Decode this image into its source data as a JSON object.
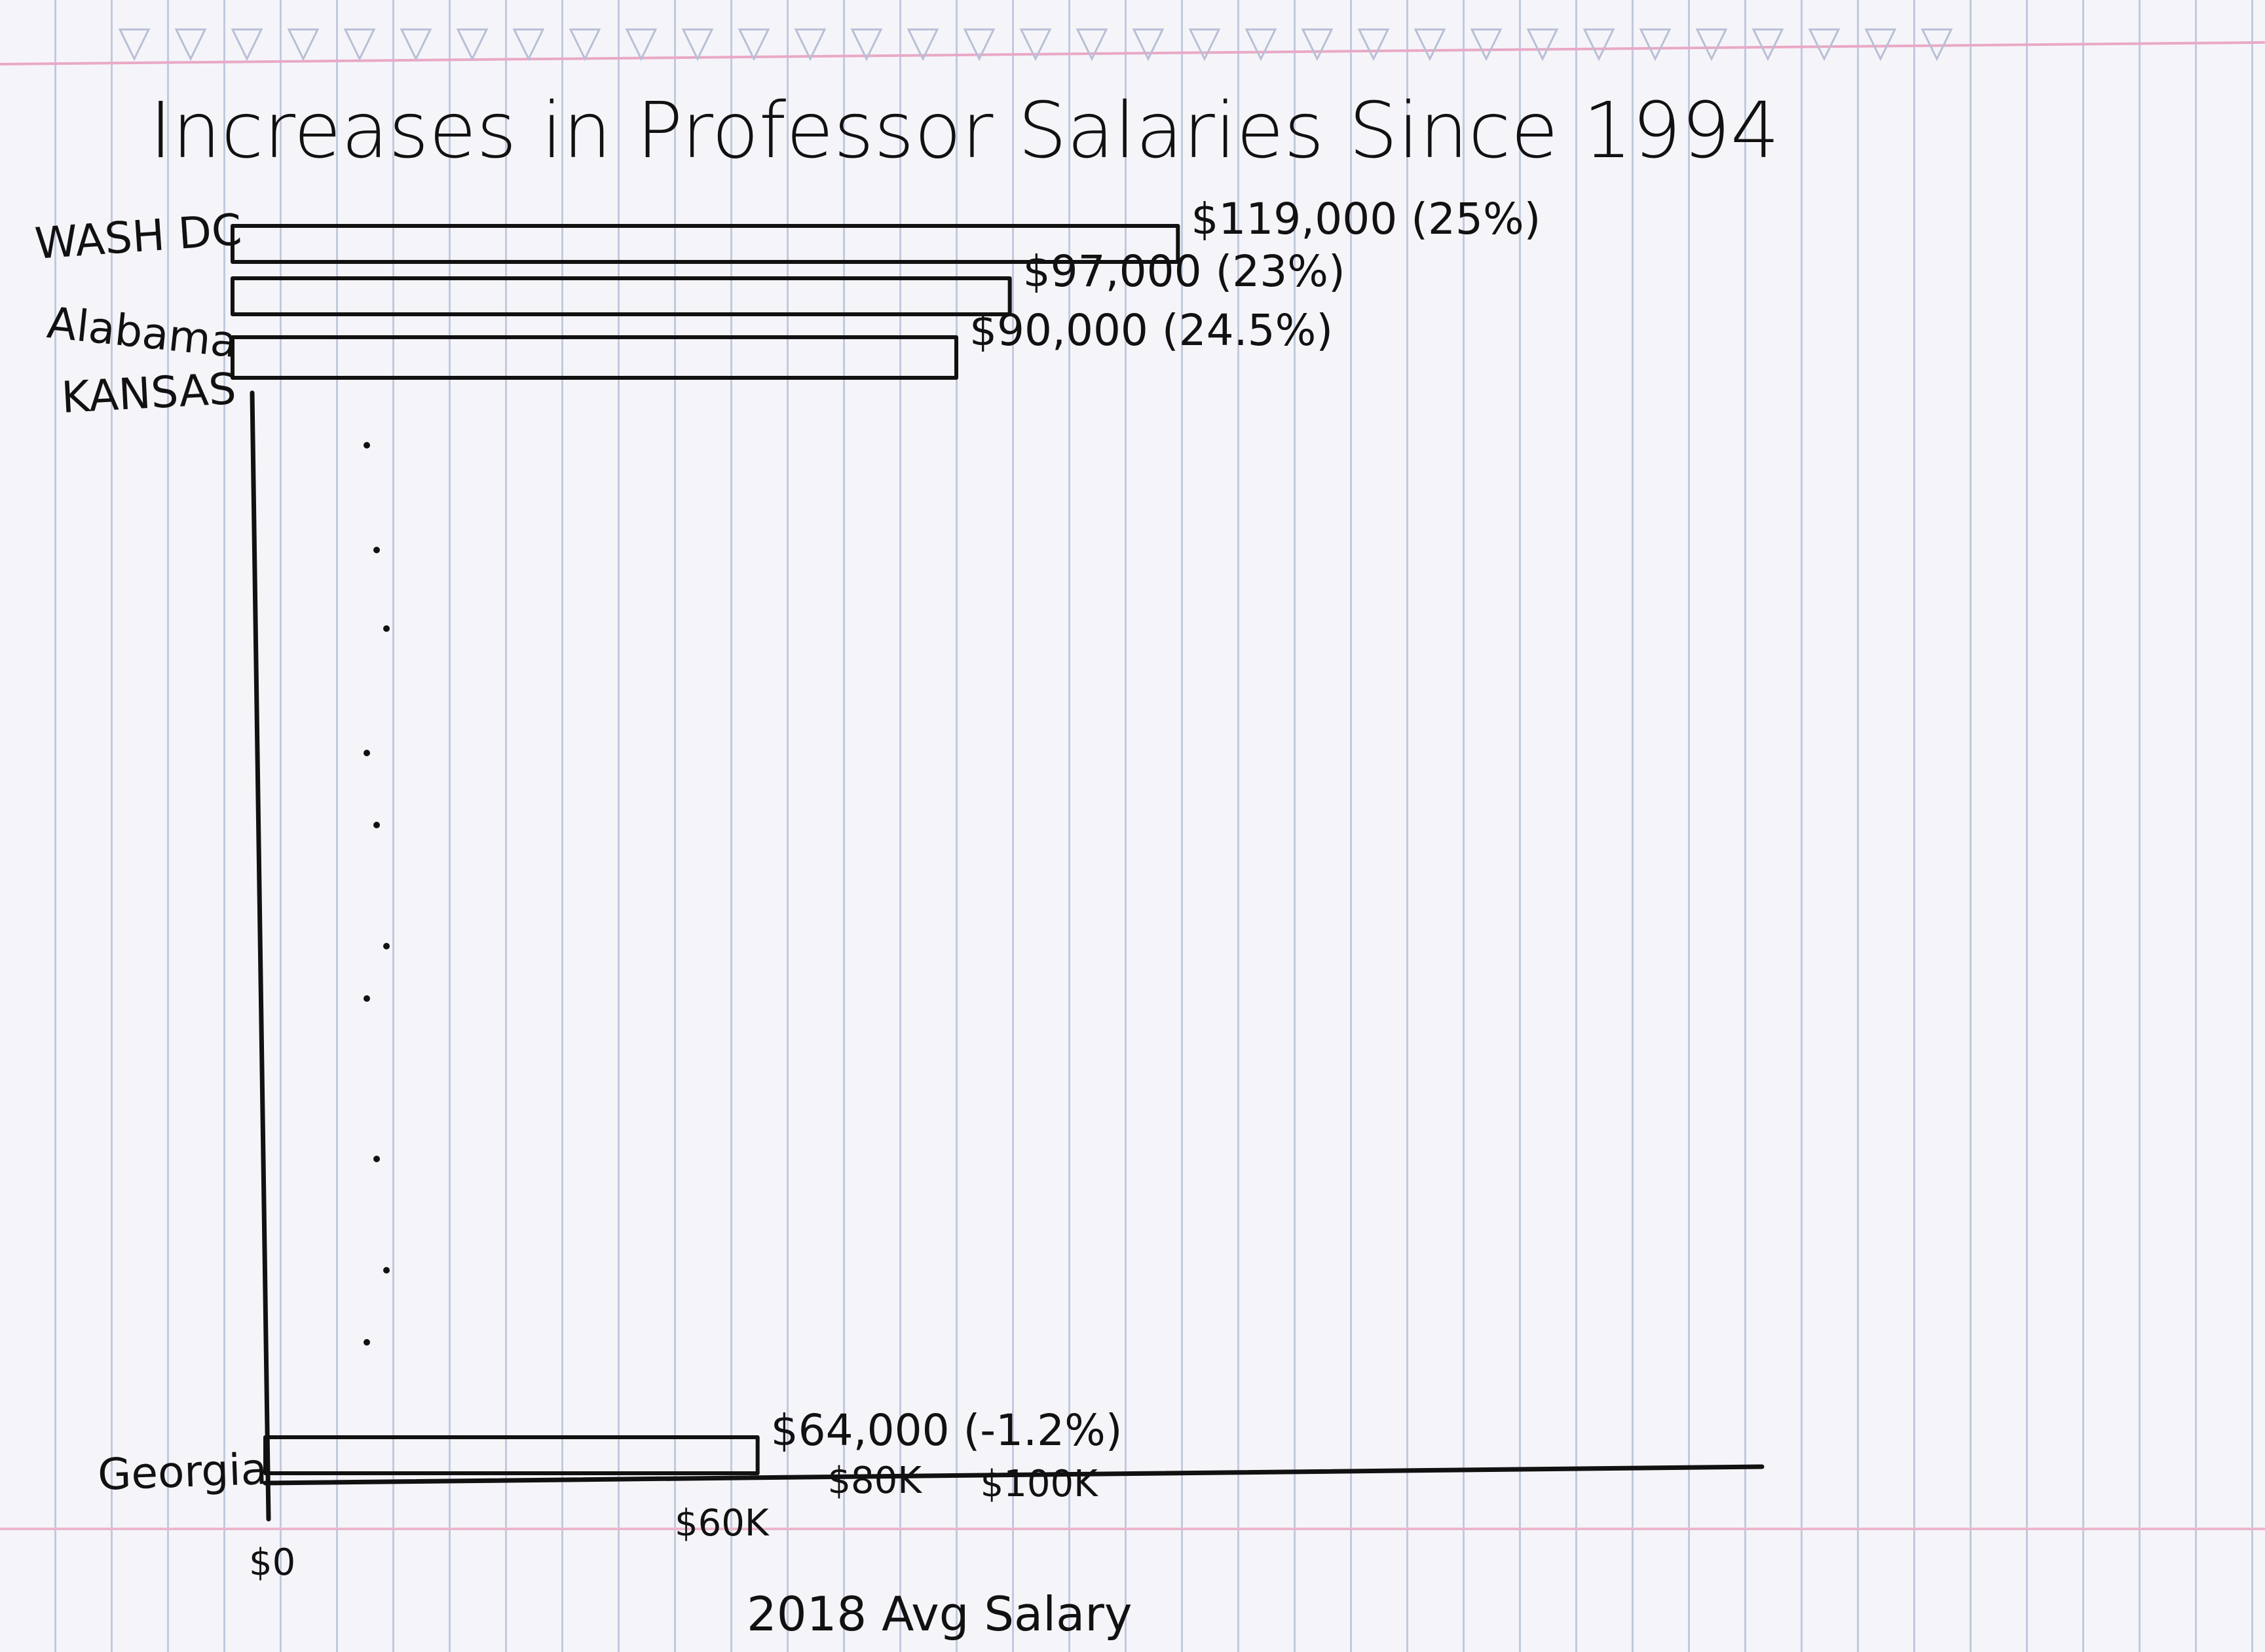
{
  "chart_data": {
    "type": "bar",
    "orientation": "horizontal",
    "title": "Increases in Professor Salaries Since 1994",
    "xlabel": "2018 Avg Salary",
    "ylabel": "",
    "categories": [
      "WASH DC",
      "Alabama",
      "KANSAS",
      "Georgia"
    ],
    "values": [
      119000,
      97000,
      90000,
      64000
    ],
    "data_labels": [
      "$119,000 (25%)",
      "$97,000 (23%)",
      "$90,000 (24.5%)",
      "$64,000 (-1.2%)"
    ],
    "x_ticks": [
      {
        "value": 0,
        "label": "$0"
      },
      {
        "value": 60000,
        "label": "$60K"
      },
      {
        "value": 80000,
        "label": "$80K"
      },
      {
        "value": 100000,
        "label": "$100K"
      }
    ],
    "xlim": [
      0,
      120000
    ],
    "grid": false,
    "legend": "none"
  },
  "colors": {
    "ink": "#111111",
    "paper": "#f5f5f9",
    "rule_line": "#c2c9de",
    "margin_line": "#e9a9c6"
  }
}
